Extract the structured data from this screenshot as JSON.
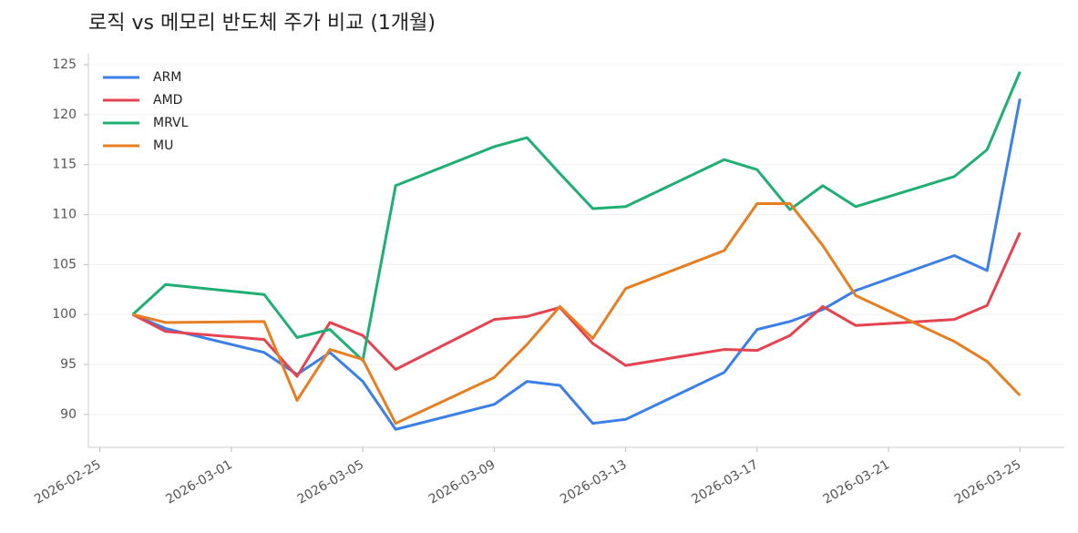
{
  "chart_data": {
    "type": "line",
    "title": "로직 vs 메모리 반도체 주가 비교 (1개월)",
    "x": [
      "2026-02-26",
      "2026-02-27",
      "2026-03-02",
      "2026-03-03",
      "2026-03-04",
      "2026-03-05",
      "2026-03-06",
      "2026-03-09",
      "2026-03-10",
      "2026-03-11",
      "2026-03-12",
      "2026-03-13",
      "2026-03-16",
      "2026-03-17",
      "2026-03-18",
      "2026-03-19",
      "2026-03-20",
      "2026-03-23",
      "2026-03-24",
      "2026-03-25"
    ],
    "series": [
      {
        "name": "ARM",
        "color": "#3a80e8",
        "values": [
          100,
          98.6,
          96.2,
          94.0,
          96.2,
          93.3,
          88.5,
          91.0,
          93.3,
          92.9,
          89.1,
          89.5,
          94.2,
          98.5,
          99.3,
          100.5,
          102.4,
          105.9,
          104.4,
          121.6
        ]
      },
      {
        "name": "AMD",
        "color": "#e5434f",
        "values": [
          100,
          98.3,
          97.5,
          93.8,
          99.2,
          97.9,
          94.5,
          99.5,
          99.8,
          100.7,
          97.1,
          94.9,
          96.5,
          96.4,
          97.9,
          100.8,
          98.9,
          99.5,
          100.9,
          108.2
        ]
      },
      {
        "name": "MRVL",
        "color": "#1fae74",
        "values": [
          100,
          103.0,
          102.0,
          97.7,
          98.5,
          95.4,
          112.9,
          116.8,
          117.7,
          114.1,
          110.6,
          110.8,
          115.5,
          114.5,
          110.5,
          112.9,
          110.8,
          113.8,
          116.5,
          124.3
        ]
      },
      {
        "name": "MU",
        "color": "#e67e22",
        "values": [
          100,
          99.2,
          99.3,
          91.4,
          96.5,
          95.5,
          89.1,
          93.7,
          97.0,
          100.8,
          97.6,
          102.6,
          106.4,
          111.1,
          111.1,
          106.9,
          101.9,
          97.3,
          95.3,
          91.9
        ]
      }
    ],
    "xlim": [
      "2026-02-24T15:36",
      "2026-03-26T08:24"
    ],
    "xticks": [
      "2026-02-25",
      "2026-03-01",
      "2026-03-05",
      "2026-03-09",
      "2026-03-13",
      "2026-03-17",
      "2026-03-21",
      "2026-03-25"
    ],
    "ylim": [
      86.7,
      126.1
    ],
    "yticks": [
      90,
      95,
      100,
      105,
      110,
      115,
      120,
      125
    ],
    "grid": true,
    "legend": "upper-left"
  }
}
